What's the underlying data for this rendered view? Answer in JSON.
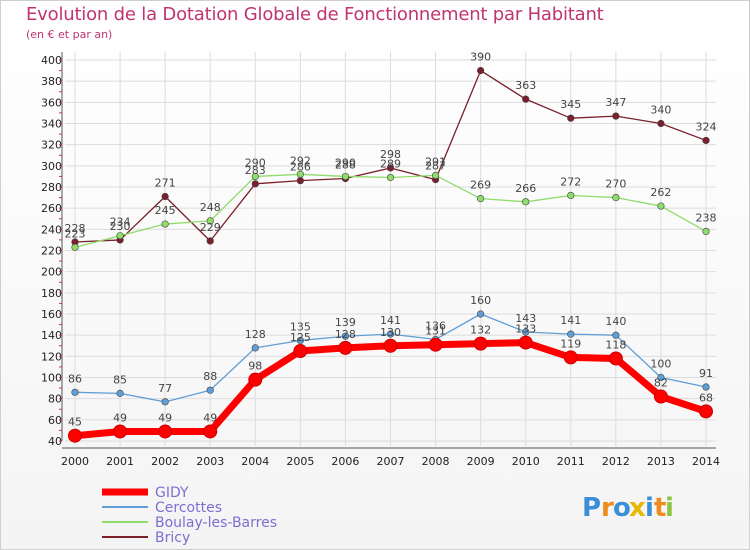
{
  "chart_data": {
    "type": "line",
    "title": "Evolution de la Dotation Globale de Fonctionnement par Habitant",
    "subtitle": "(en € et par an)",
    "xlabel": "",
    "ylabel": "",
    "x": [
      "2000",
      "2001",
      "2002",
      "2003",
      "2004",
      "2005",
      "2006",
      "2007",
      "2008",
      "2009",
      "2010",
      "2011",
      "2012",
      "2013",
      "2014"
    ],
    "y_ticks": [
      40,
      60,
      80,
      100,
      120,
      140,
      160,
      180,
      200,
      220,
      240,
      260,
      280,
      300,
      320,
      340,
      360,
      380,
      400
    ],
    "ylim": [
      40,
      400
    ],
    "grid": true,
    "legend_position": "bottom-left",
    "series": [
      {
        "name": "GIDY",
        "color": "#ff0000",
        "values": [
          45,
          49,
          49,
          49,
          98,
          125,
          128,
          130,
          131,
          132,
          133,
          119,
          118,
          82,
          68
        ]
      },
      {
        "name": "Cercottes",
        "color": "#5f9ed6",
        "values": [
          86,
          85,
          77,
          88,
          128,
          135,
          139,
          141,
          136,
          160,
          143,
          141,
          140,
          100,
          91
        ]
      },
      {
        "name": "Boulay-les-Barres",
        "color": "#8fdc6a",
        "values": [
          223,
          234,
          245,
          248,
          290,
          292,
          290,
          289,
          291,
          269,
          266,
          272,
          270,
          262,
          238
        ]
      },
      {
        "name": "Bricy",
        "color": "#7a1f2b",
        "values": [
          228,
          230,
          271,
          229,
          283,
          286,
          288,
          298,
          287,
          390,
          363,
          345,
          347,
          340,
          324
        ]
      }
    ]
  },
  "logo": {
    "text": "Proxiti",
    "letters": [
      "P",
      "r",
      "o",
      "x",
      "i",
      "t",
      "i"
    ],
    "colors": [
      "#3a8fd6",
      "#f08a1c",
      "#3a8fd6",
      "#e6b800",
      "#3a8fd6",
      "#f08a1c",
      "#8cc63f"
    ]
  }
}
